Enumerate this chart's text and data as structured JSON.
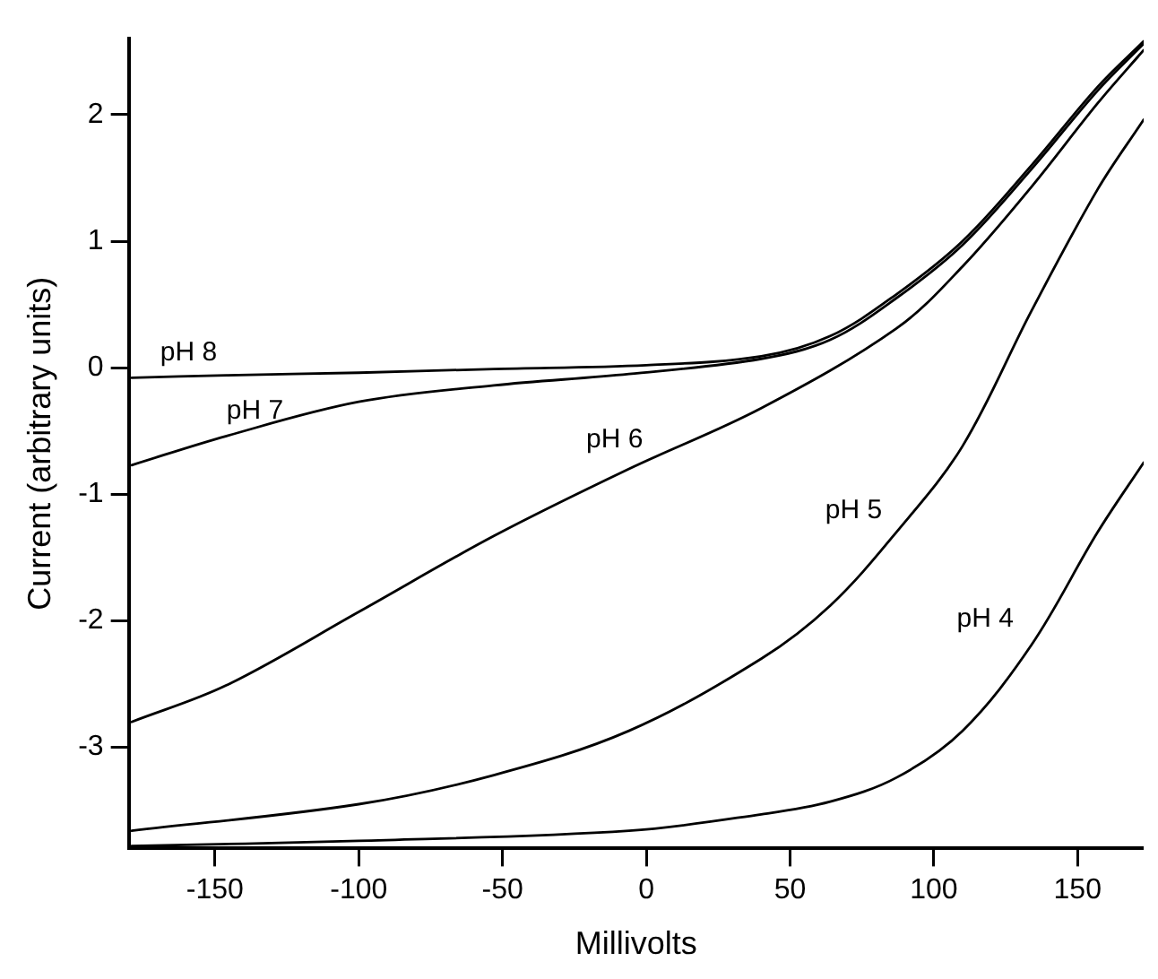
{
  "chart_data": {
    "type": "line",
    "xlabel": "Millivolts",
    "ylabel": "Current (arbitrary units)",
    "xlim": [
      -180,
      173
    ],
    "xticks": [
      -150,
      -100,
      -50,
      0,
      50,
      100,
      150
    ],
    "ylim": [
      -3.8,
      2.6
    ],
    "yticks": [
      -3,
      -2,
      -1,
      0,
      1,
      2
    ],
    "grid": false,
    "legend": false,
    "marker": "none",
    "line_style": "solid",
    "series": [
      {
        "name": "pH 8",
        "color": "#000000",
        "x": [
          -179,
          -146,
          -100,
          -53,
          0,
          40,
          64,
          87,
          110,
          134,
          157,
          173
        ],
        "values": [
          -0.08,
          -0.06,
          -0.04,
          -0.01,
          0.02,
          0.09,
          0.25,
          0.58,
          1.0,
          1.6,
          2.22,
          2.58
        ]
      },
      {
        "name": "pH 7",
        "color": "#000000",
        "x": [
          -179,
          -146,
          -100,
          -53,
          -6,
          40,
          64,
          87,
          110,
          134,
          157,
          173
        ],
        "values": [
          -0.77,
          -0.54,
          -0.27,
          -0.14,
          -0.05,
          0.07,
          0.22,
          0.55,
          0.97,
          1.57,
          2.19,
          2.56
        ]
      },
      {
        "name": "pH 6",
        "color": "#000000",
        "x": [
          -179,
          -146,
          -100,
          -53,
          -6,
          40,
          87,
          110,
          134,
          157,
          173
        ],
        "values": [
          -2.8,
          -2.51,
          -1.93,
          -1.33,
          -0.8,
          -0.32,
          0.31,
          0.8,
          1.43,
          2.09,
          2.51
        ]
      },
      {
        "name": "pH 5",
        "color": "#000000",
        "x": [
          -179,
          -100,
          -53,
          -6,
          40,
          64,
          87,
          110,
          134,
          157,
          173
        ],
        "values": [
          -3.66,
          -3.45,
          -3.22,
          -2.87,
          -2.3,
          -1.88,
          -1.3,
          -0.62,
          0.45,
          1.41,
          1.96
        ]
      },
      {
        "name": "pH 4",
        "color": "#000000",
        "x": [
          -179,
          -100,
          -6,
          40,
          64,
          87,
          110,
          134,
          157,
          173
        ],
        "values": [
          -3.78,
          -3.74,
          -3.66,
          -3.53,
          -3.43,
          -3.24,
          -2.87,
          -2.19,
          -1.3,
          -0.75
        ]
      }
    ]
  }
}
